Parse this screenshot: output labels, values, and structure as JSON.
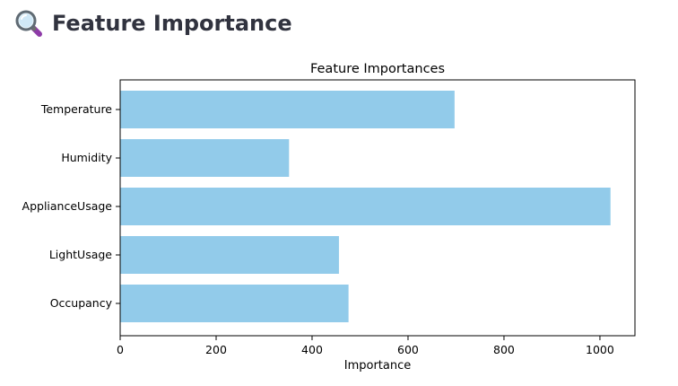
{
  "header": {
    "icon": "magnifying-glass-icon",
    "title": "Feature Importance"
  },
  "chart_data": {
    "type": "bar",
    "orientation": "horizontal",
    "title": "Feature Importances",
    "xlabel": "Importance",
    "ylabel": "",
    "categories": [
      "Temperature",
      "Humidity",
      "ApplianceUsage",
      "LightUsage",
      "Occupancy"
    ],
    "values": [
      697,
      352,
      1022,
      456,
      476
    ],
    "xlim": [
      0,
      1073
    ],
    "xticks": [
      0,
      200,
      400,
      600,
      800,
      1000
    ],
    "bar_color": "#92cbea",
    "grid": false,
    "legend": "none"
  }
}
